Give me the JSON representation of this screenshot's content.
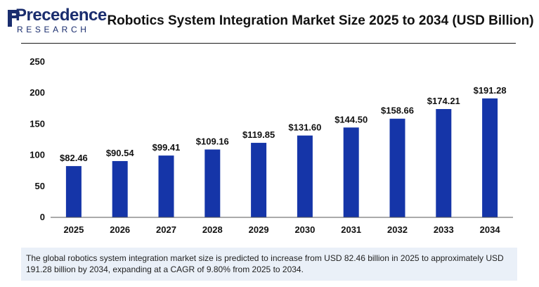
{
  "brand": {
    "name": "Precedence",
    "sub": "RESEARCH",
    "color": "#1a2d6e"
  },
  "chart_data": {
    "type": "bar",
    "title": "Robotics System Integration Market Size 2025 to 2034 (USD Billion)",
    "xlabel": "",
    "ylabel": "",
    "categories": [
      "2025",
      "2026",
      "2027",
      "2028",
      "2029",
      "2030",
      "2031",
      "2032",
      "2033",
      "2034"
    ],
    "values": [
      82.46,
      90.54,
      99.41,
      109.16,
      119.85,
      131.6,
      144.5,
      158.66,
      174.21,
      191.28
    ],
    "data_labels": [
      "$82.46",
      "$90.54",
      "$99.41",
      "$109.16",
      "$119.85",
      "$131.60",
      "$144.50",
      "$158.66",
      "$174.21",
      "$191.28"
    ],
    "ylim": [
      0,
      250
    ],
    "yticks": [
      0,
      50,
      100,
      150,
      200,
      250
    ],
    "grid": false,
    "legend": "none",
    "bar_color": "#1535a8"
  },
  "footer": {
    "text": "The global robotics system integration market size is predicted to increase from USD 82.46 billion in 2025 to approximately USD 191.28 billion by 2034, expanding at a CAGR of 9.80% from 2025 to 2034."
  }
}
